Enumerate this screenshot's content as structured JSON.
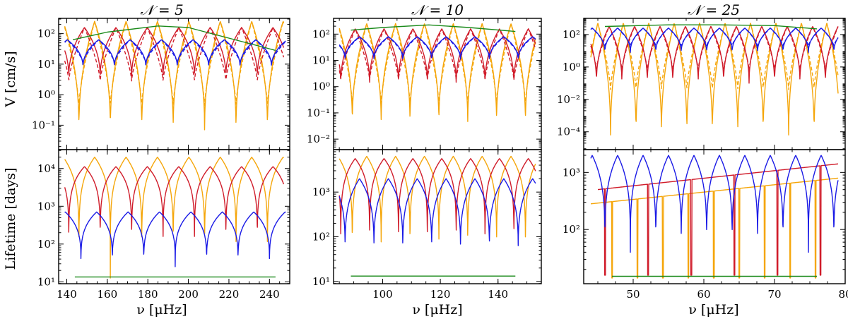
{
  "colors": {
    "green": "#1a8a1a",
    "blue": "#1a1ae6",
    "red": "#d01c2a",
    "orange": "#f5a60a"
  },
  "chart_data": [
    {
      "type": "line",
      "title": "𝒩 = 5",
      "xlabel": "ν [μHz]",
      "xlim": [
        136,
        250
      ],
      "xticks": [
        140,
        160,
        180,
        200,
        220,
        240
      ],
      "xtick_labels": [
        "140",
        "160",
        "180",
        "200",
        "220",
        "240"
      ],
      "top": {
        "ylabel": "V [cm/s]",
        "yscale": "log",
        "ylim_log10": [
          -1.8,
          2.5
        ],
        "yticks_log10": [
          -1,
          0,
          1,
          2
        ],
        "ytick_labels": [
          "10⁻¹",
          "10⁰",
          "10¹",
          "10²"
        ]
      },
      "bottom": {
        "ylabel": "Lifetime [days]",
        "yscale": "log",
        "ylim_log10": [
          0.95,
          4.5
        ],
        "yticks_log10": [
          1,
          2,
          3,
          4
        ],
        "ytick_labels": [
          "10¹",
          "10²",
          "10³",
          "10⁴"
        ]
      },
      "curves": {
        "green_top": {
          "x": [
            143,
            160,
            185,
            200,
            243
          ],
          "log10_v": [
            1.8,
            2.05,
            2.25,
            2.2,
            1.45
          ]
        },
        "blue_top": {
          "x_range": [
            139,
            248
          ],
          "period": 15.5,
          "phase": 148,
          "log10_max": 1.8,
          "log10_min": 0.9,
          "log10_dashed_min": 1.05
        },
        "red_top": {
          "x_range": [
            139,
            247
          ],
          "period": 15.5,
          "phase": 141,
          "log10_max": 2.2,
          "log10_min": 0.55,
          "log10_dashed_min": 0.45
        },
        "orange_top": {
          "x_range": [
            139,
            247
          ],
          "period": 15.5,
          "phase": 146,
          "log10_max": 2.4,
          "log10_min": -1.15,
          "log10_dashed_min": -0.35
        },
        "green_bottom": {
          "x": [
            144,
            243
          ],
          "log10_life": [
            1.13,
            1.13
          ]
        },
        "blue_bottom": {
          "x_range": [
            139,
            248
          ],
          "period": 15.5,
          "phase": 147,
          "log10_max": 2.85,
          "log10_min": 1.4
        },
        "red_bottom": {
          "x_range": [
            139,
            247
          ],
          "period": 15.5,
          "phase": 141,
          "log10_max": 4.05,
          "log10_min": 1.2
        },
        "orange_bottom": {
          "x_range": [
            139,
            247
          ],
          "period": 15.5,
          "phase": 146,
          "log10_max": 4.3,
          "log10_min": 1.1
        }
      }
    },
    {
      "type": "line",
      "title": "𝒩 = 10",
      "xlabel": "ν [μHz]",
      "xlim": [
        83,
        155
      ],
      "xticks": [
        100,
        120,
        140
      ],
      "xtick_labels": [
        "100",
        "120",
        "140"
      ],
      "top": {
        "ylabel": "",
        "yscale": "log",
        "ylim_log10": [
          -2.4,
          2.6
        ],
        "yticks_log10": [
          -2,
          -1,
          0,
          1,
          2
        ],
        "ytick_labels": [
          "10⁻²",
          "10⁻¹",
          "10⁰",
          "10¹",
          "10²"
        ]
      },
      "bottom": {
        "ylabel": "",
        "yscale": "log",
        "ylim_log10": [
          0.95,
          3.95
        ],
        "yticks_log10": [
          1,
          2,
          3
        ],
        "ytick_labels": [
          "10¹",
          "10²",
          "10³"
        ]
      },
      "curves": {
        "green_top": {
          "x": [
            89,
            100,
            116,
            130,
            146
          ],
          "log10_v": [
            2.15,
            2.25,
            2.35,
            2.25,
            2.1
          ]
        },
        "blue_top": {
          "x_range": [
            85,
            153
          ],
          "period": 10,
          "phase": 87,
          "log10_max": 1.9,
          "log10_min": 1.0,
          "log10_dashed_min": 1.2
        },
        "red_top": {
          "x_range": [
            85,
            153
          ],
          "period": 10,
          "phase": 85.5,
          "log10_max": 2.2,
          "log10_min": 0.1,
          "log10_dashed_min": 0.25
        },
        "orange_top": {
          "x_range": [
            85,
            153
          ],
          "period": 10,
          "phase": 89.5,
          "log10_max": 2.4,
          "log10_min": -1.45,
          "log10_dashed_min": -0.65
        },
        "green_bottom": {
          "x": [
            89,
            146
          ],
          "log10_life": [
            1.12,
            1.12
          ]
        },
        "blue_bottom": {
          "x_range": [
            85,
            153
          ],
          "period": 10,
          "phase": 87,
          "log10_max": 3.3,
          "log10_min": 1.5
        },
        "red_bottom": {
          "x_range": [
            85,
            153
          ],
          "period": 10,
          "phase": 85.5,
          "log10_max": 3.75,
          "log10_min": 1.05
        },
        "orange_bottom": {
          "x_range": [
            85,
            153
          ],
          "period": 10,
          "phase": 89.5,
          "log10_max": 3.8,
          "log10_min": 1.05
        }
      }
    },
    {
      "type": "line",
      "title": "𝒩 = 25",
      "xlabel": "ν [μHz]",
      "xlim": [
        43,
        80
      ],
      "xticks": [
        50,
        60,
        70,
        80
      ],
      "xtick_labels": [
        "50",
        "60",
        "70",
        "80"
      ],
      "top": {
        "ylabel": "",
        "yscale": "log",
        "ylim_log10": [
          -5.1,
          3.0
        ],
        "yticks_log10": [
          -4,
          -2,
          0,
          2
        ],
        "ytick_labels": [
          "10⁻⁴",
          "10⁻²",
          "10⁰",
          "10²"
        ]
      },
      "bottom": {
        "ylabel": "",
        "yscale": "log",
        "ylim_log10": [
          1.05,
          3.4
        ],
        "yticks_log10": [
          2,
          3
        ],
        "ytick_labels": [
          "10²",
          "10³"
        ]
      },
      "curves": {
        "green_top": {
          "x": [
            46,
            55,
            62,
            70,
            76
          ],
          "log10_v": [
            2.5,
            2.6,
            2.6,
            2.55,
            2.35
          ]
        },
        "blue_top": {
          "x_range": [
            44,
            79
          ],
          "period": 3.6,
          "phase": 46,
          "log10_max": 2.4,
          "log10_min": 0.9,
          "log10_dashed_min": 1.3
        },
        "red_top": {
          "x_range": [
            44,
            79
          ],
          "period": 3.6,
          "phase": 44.8,
          "log10_max": 2.5,
          "log10_min": -1.0,
          "log10_dashed_min": -0.2
        },
        "orange_top": {
          "x_range": [
            44,
            79
          ],
          "period": 3.6,
          "phase": 46.8,
          "log10_max": 2.7,
          "log10_min": -4.2,
          "log10_dashed_min": -1.4
        },
        "green_bottom": {
          "x": [
            47,
            76
          ],
          "log10_life": [
            1.18,
            1.18
          ]
        },
        "blue_bottom": {
          "x_range": [
            44,
            79
          ],
          "period": 3.6,
          "phase": 46,
          "log10_max": 3.3,
          "log10_min": 1.6
        },
        "red_bottom": {
          "x_range": [
            45,
            79
          ],
          "period": 6.1,
          "phase": 46,
          "log10_start": 2.7,
          "log10_end": 3.15,
          "log10_min": 1.2
        },
        "orange_bottom": {
          "x_range": [
            44,
            79
          ],
          "period": 3.6,
          "phase": 47,
          "log10_start": 2.45,
          "log10_end": 2.9,
          "log10_min": 1.15
        }
      }
    }
  ]
}
